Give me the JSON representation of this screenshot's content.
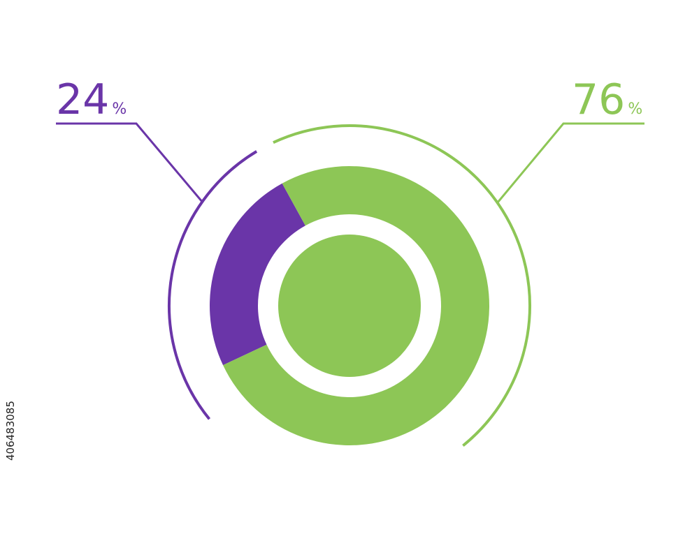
{
  "chart_data": {
    "type": "donut",
    "values": [
      24,
      76
    ],
    "value_labels": [
      "24%",
      "76%"
    ],
    "colors": [
      "#6a35a8",
      "#8dc656"
    ]
  },
  "image_id": "406483085"
}
